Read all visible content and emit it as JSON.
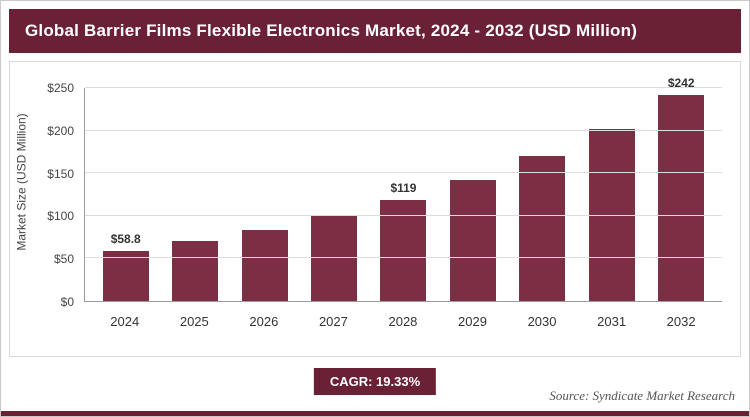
{
  "header": {
    "title": "Global Barrier Films Flexible Electronics Market, 2024 - 2032 (USD Million)"
  },
  "colors": {
    "accent_dark": "#6a2135",
    "bar_color": "#7b2e44",
    "gridline": "#dddddd"
  },
  "chart_data": {
    "type": "bar",
    "title": "Global Barrier Films Flexible Electronics Market, 2024 - 2032 (USD Million)",
    "categories": [
      "2024",
      "2025",
      "2026",
      "2027",
      "2028",
      "2029",
      "2030",
      "2031",
      "2032"
    ],
    "values": [
      58.8,
      70,
      83,
      100,
      119,
      142,
      170,
      202,
      242
    ],
    "bar_labels": [
      "$58.8",
      "",
      "",
      "",
      "$119",
      "",
      "",
      "",
      "$242"
    ],
    "xlabel": "",
    "ylabel": "Market Size (USD Million)",
    "ylim": [
      0,
      250
    ],
    "ytick_values": [
      0,
      50,
      100,
      150,
      200,
      250
    ],
    "ytick_labels": [
      "$0",
      "$50",
      "$100",
      "$150",
      "$200",
      "$250"
    ],
    "grid": "horizontal",
    "legend": "none"
  },
  "footer": {
    "cagr_label": "CAGR: 19.33%",
    "source": "Source: Syndicate Market Research"
  }
}
